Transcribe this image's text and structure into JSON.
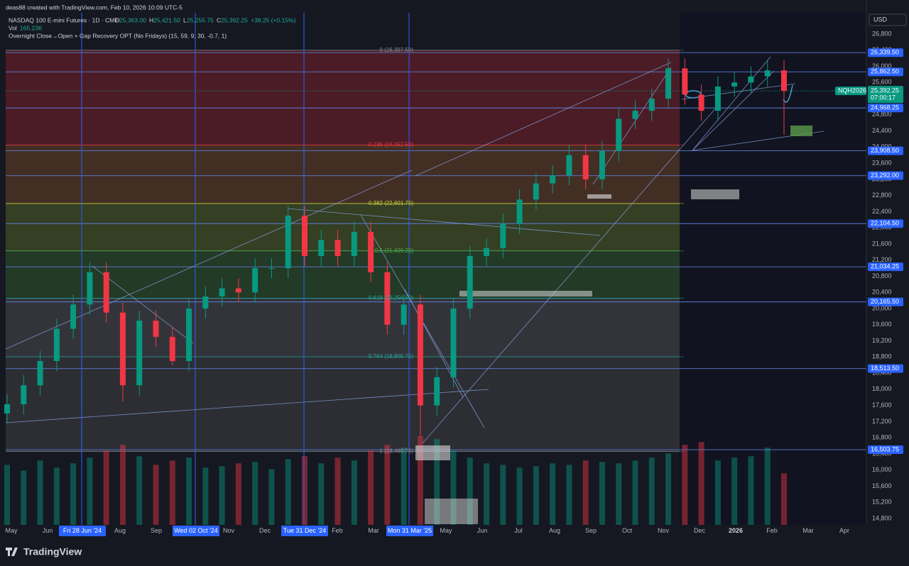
{
  "header": {
    "credit": "deas88 created with TradingView.com, Feb 10, 2026 10:09 UTC-5",
    "symbol": "NASDAQ 100 E-mini Futures · 1D · CME",
    "ohlc": [
      "O",
      "25,363.00",
      "H",
      "25,421.50",
      "L",
      "25,255.75",
      "C",
      "25,392.25",
      "+38.25 (+0.15%)"
    ],
    "volume_label": "Vol",
    "volume_value": "165.23K",
    "indicator": "Overnight Close→Open + Gap Recovery OPT (No Fridays) (15, 59, 9, 30, -0.7, 1)",
    "currency": "USD"
  },
  "footer": {
    "brand": "TradingView"
  },
  "chart_data": {
    "type": "candlestick",
    "up_color": "#089981",
    "down_color": "#f23645",
    "ylim": [
      14642,
      27327
    ],
    "yticks": [
      {
        "value": 14800,
        "label": "14,800"
      },
      {
        "value": 15200,
        "label": "15,200"
      },
      {
        "value": 15600,
        "label": "15,600"
      },
      {
        "value": 16000,
        "label": "16,000"
      },
      {
        "value": 16400,
        "label": "16,400"
      },
      {
        "value": 16800,
        "label": "16,800"
      },
      {
        "value": 17200,
        "label": "17,200"
      },
      {
        "value": 17600,
        "label": "17,600"
      },
      {
        "value": 18000,
        "label": "18,000"
      },
      {
        "value": 18400,
        "label": "18,400"
      },
      {
        "value": 18800,
        "label": "18,800"
      },
      {
        "value": 19200,
        "label": "19,200"
      },
      {
        "value": 19600,
        "label": "19,600"
      },
      {
        "value": 20000,
        "label": "20,000"
      },
      {
        "value": 20400,
        "label": "20,400"
      },
      {
        "value": 20800,
        "label": "20,800"
      },
      {
        "value": 21200,
        "label": "21,200"
      },
      {
        "value": 21600,
        "label": "21,600"
      },
      {
        "value": 22000,
        "label": "22,000"
      },
      {
        "value": 22400,
        "label": "22,400"
      },
      {
        "value": 22800,
        "label": "22,800"
      },
      {
        "value": 23200,
        "label": "23,200"
      },
      {
        "value": 23600,
        "label": "23,600"
      },
      {
        "value": 24000,
        "label": "24,000"
      },
      {
        "value": 24400,
        "label": "24,400"
      },
      {
        "value": 24800,
        "label": "24,800"
      },
      {
        "value": 25200,
        "label": "25,200"
      },
      {
        "value": 25600,
        "label": "25,600"
      },
      {
        "value": 26000,
        "label": "26,000"
      },
      {
        "value": 26400,
        "label": "26,400"
      },
      {
        "value": 26800,
        "label": "26,800"
      }
    ],
    "x_labels": [
      "May",
      "Jun",
      null,
      "Aug",
      "Sep",
      null,
      "Nov",
      "Dec",
      null,
      "Feb",
      "Mar",
      null,
      "May",
      "Jun",
      "Jul",
      "Aug",
      "Sep",
      "Oct",
      "Nov",
      "Dec",
      "2026",
      "Feb",
      "Mar",
      "Apr"
    ],
    "date_markers": [
      "Fri 28 Jun '24",
      "Wed 02 Oct '24",
      "Tue 31 Dec '24",
      "Mon 31 Mar '25"
    ],
    "open": [
      17400,
      17630,
      18100,
      18700,
      19500,
      20100,
      20900,
      19900,
      18100,
      19700,
      19300,
      18700,
      20000,
      20300,
      20500,
      20400,
      21000,
      21000,
      22300,
      21300,
      21700,
      21300,
      21900,
      20900,
      19600,
      20100,
      17600,
      18300,
      20000,
      21300,
      21500,
      22100,
      22700,
      23100,
      23300,
      23800,
      23200,
      23900,
      24700,
      24900,
      25200,
      25950,
      25300,
      24900,
      25500,
      25600,
      25750,
      25900
    ],
    "high": [
      17880,
      18350,
      18950,
      19750,
      20350,
      21150,
      21150,
      20150,
      19950,
      19950,
      19550,
      20250,
      20550,
      20750,
      20750,
      21250,
      21250,
      22550,
      22550,
      21950,
      21950,
      22150,
      22150,
      21150,
      20350,
      20350,
      18550,
      20250,
      21550,
      21750,
      22350,
      22950,
      23350,
      23550,
      24050,
      24050,
      24150,
      24950,
      25150,
      25450,
      26200,
      26200,
      25550,
      25750,
      25850,
      26000,
      26150,
      26150
    ],
    "low": [
      17150,
      17380,
      17850,
      18450,
      19250,
      19850,
      19650,
      17700,
      17850,
      19050,
      18600,
      18450,
      19750,
      20050,
      20150,
      20150,
      20750,
      20750,
      21050,
      21050,
      21050,
      21050,
      20650,
      19350,
      19350,
      16800,
      17350,
      18050,
      19750,
      21050,
      21250,
      21850,
      22450,
      22850,
      23050,
      22950,
      22950,
      23650,
      24450,
      24650,
      24950,
      25050,
      24650,
      24650,
      25250,
      25350,
      25500,
      24300
    ],
    "close": [
      17630,
      18100,
      18700,
      19500,
      20100,
      20900,
      19900,
      18100,
      19700,
      19300,
      18700,
      20000,
      20300,
      20500,
      20400,
      21000,
      21000,
      22300,
      21300,
      21700,
      21300,
      21900,
      20900,
      19600,
      20100,
      17600,
      18300,
      20000,
      21300,
      21500,
      22100,
      22700,
      23100,
      23300,
      23800,
      23200,
      23900,
      24700,
      24900,
      25200,
      25950,
      25300,
      24900,
      25500,
      25600,
      25750,
      25900,
      25392.25
    ],
    "volume": [
      420,
      380,
      450,
      400,
      430,
      470,
      520,
      560,
      480,
      420,
      450,
      470,
      400,
      410,
      430,
      440,
      390,
      460,
      480,
      430,
      470,
      450,
      520,
      560,
      540,
      620,
      600,
      520,
      470,
      430,
      420,
      400,
      410,
      430,
      420,
      450,
      440,
      430,
      450,
      470,
      500,
      560,
      580,
      450,
      470,
      480,
      540,
      360
    ],
    "fib_levels": [
      {
        "value": 26397.5,
        "label": "0 (26,397.50)",
        "color": "#8a8a8a",
        "zone_color": "#b3262f"
      },
      {
        "value": 24052.5,
        "label": "0.236 (24,052.50)",
        "color": "#f23645",
        "zone_color": "#9a5a2a"
      },
      {
        "value": 22601.75,
        "label": "0.382 (22,601.75)",
        "color": "#c6d33a",
        "zone_color": "#6f8a2a"
      },
      {
        "value": 21429.25,
        "label": "0.5 (21,429.25)",
        "color": "#4caf50",
        "zone_color": "#3f7a30"
      },
      {
        "value": 20256.5,
        "label": "0.618 (20,256.50)",
        "color": "#26a69a",
        "zone_color": "#6b6b6b"
      },
      {
        "value": 18805.75,
        "label": "0.764 (18,805.75)",
        "color": "#26a69a",
        "zone_color": "#5a5a5a"
      },
      {
        "value": 16460.75,
        "label": "1 (16,460.75)",
        "color": "#8a8a8a"
      }
    ],
    "price_lines": [
      {
        "value": 26339.5,
        "label": "26,339.50"
      },
      {
        "value": 25862.5,
        "label": "25,862.50"
      },
      {
        "value": 24968.25,
        "label": "24,968.25"
      },
      {
        "value": 23908.5,
        "label": "23,908.50"
      },
      {
        "value": 23292,
        "label": "23,292.00"
      },
      {
        "value": 22104.5,
        "label": "22,104.50"
      },
      {
        "value": 21034.25,
        "label": "21,034.25"
      },
      {
        "value": 20165.5,
        "label": "20,165.50"
      },
      {
        "value": 18513.5,
        "label": "18,513.50"
      },
      {
        "value": 16503.75,
        "label": "16,503.75"
      }
    ],
    "last_price": {
      "value": 25392.25,
      "label": "25,392.25",
      "ticker": "NQH2026",
      "countdown": "07:00:17",
      "color": "#089981"
    },
    "line_color": "#5b7bd5"
  }
}
